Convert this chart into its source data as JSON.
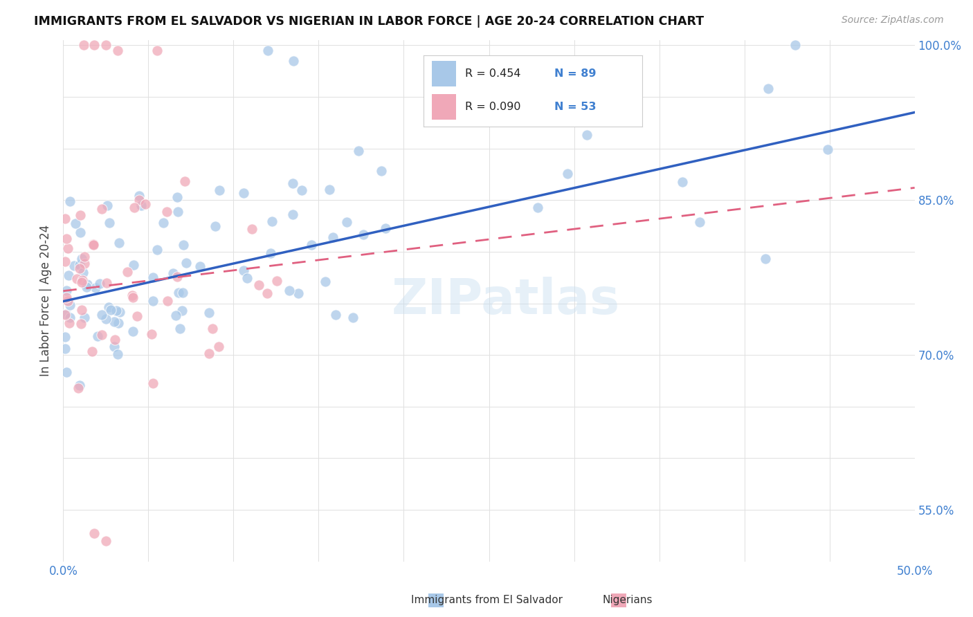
{
  "title": "IMMIGRANTS FROM EL SALVADOR VS NIGERIAN IN LABOR FORCE | AGE 20-24 CORRELATION CHART",
  "source": "Source: ZipAtlas.com",
  "ylabel_label": "In Labor Force | Age 20-24",
  "legend_blue_r": "R = 0.454",
  "legend_blue_n": "N = 89",
  "legend_pink_r": "R = 0.090",
  "legend_pink_n": "N = 53",
  "legend_blue_label": "Immigrants from El Salvador",
  "legend_pink_label": "Nigerians",
  "watermark": "ZIPatlas",
  "blue_color": "#a8c8e8",
  "pink_color": "#f0a8b8",
  "blue_line_color": "#3060c0",
  "pink_line_color": "#e06080",
  "axis_color": "#4080d0",
  "xlim": [
    0.0,
    0.5
  ],
  "ylim": [
    0.5,
    1.005
  ],
  "blue_trend_x0": 0.0,
  "blue_trend_x1": 0.5,
  "blue_trend_y0": 0.752,
  "blue_trend_y1": 0.935,
  "pink_trend_x0": 0.0,
  "pink_trend_x1": 0.5,
  "pink_trend_y0": 0.762,
  "pink_trend_y1": 0.862,
  "right_yticks": [
    0.55,
    0.7,
    0.85,
    1.0
  ],
  "right_yticklabels": [
    "55.0%",
    "70.0%",
    "85.0%",
    "100.0%"
  ],
  "xticks": [
    0.0,
    0.05,
    0.1,
    0.15,
    0.2,
    0.25,
    0.3,
    0.35,
    0.4,
    0.45,
    0.5
  ],
  "grid_color": "#e0e0e0",
  "background_color": "#ffffff",
  "dot_size": 120,
  "dot_alpha": 0.75
}
